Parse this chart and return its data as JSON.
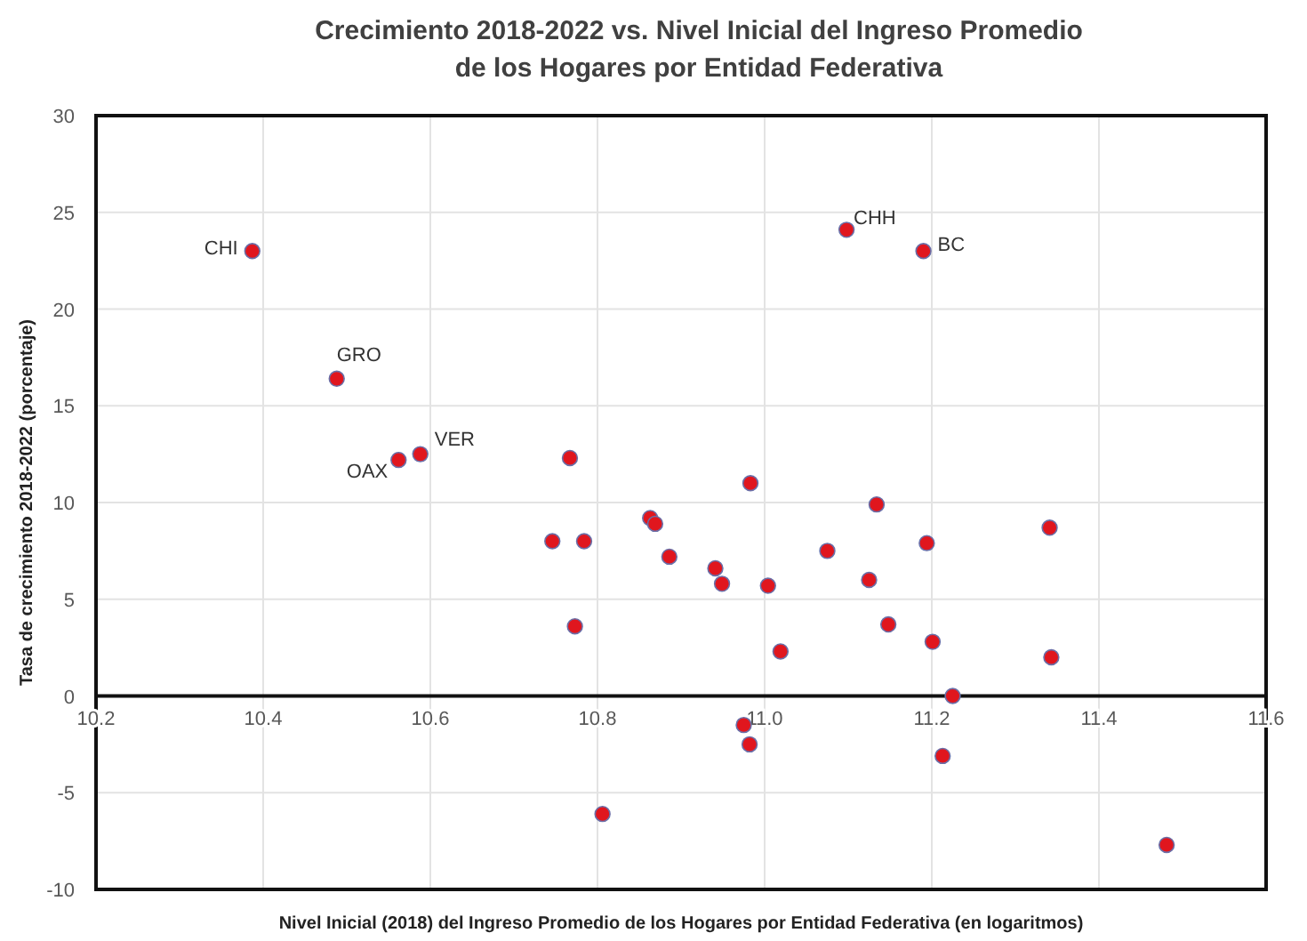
{
  "chart_data": {
    "type": "scatter",
    "title": "Crecimiento 2018-2022 vs. Nivel Inicial del Ingreso Promedio\nde los Hogares por Entidad Federativa",
    "xlabel": "Nivel Inicial (2018) del Ingreso Promedio de los Hogares por Entidad Federativa (en logaritmos)",
    "ylabel": "Tasa de crecimiento 2018-2022 (porcentaje)",
    "x": [
      10.387,
      10.488,
      10.562,
      10.588,
      11.098,
      11.19,
      10.767,
      10.746,
      10.784,
      10.773,
      10.806,
      10.863,
      10.869,
      10.886,
      10.941,
      10.949,
      10.975,
      10.982,
      10.983,
      11.004,
      11.019,
      11.075,
      11.125,
      11.134,
      11.148,
      11.194,
      11.201,
      11.213,
      11.225,
      11.341,
      11.343,
      11.481
    ],
    "series": [
      {
        "color": "#e0161e",
        "values": [
          23.0,
          16.4,
          12.2,
          12.5,
          24.1,
          23.0,
          12.3,
          8.0,
          8.0,
          3.6,
          -6.1,
          9.2,
          8.9,
          7.2,
          6.6,
          5.8,
          -1.5,
          -2.5,
          11.0,
          5.7,
          2.3,
          7.5,
          6.0,
          9.9,
          3.7,
          7.9,
          2.8,
          -3.1,
          0.0,
          8.7,
          2.0,
          -7.7
        ]
      }
    ],
    "annotations": [
      {
        "text": "CHI",
        "x": 10.387,
        "y": 23.0
      },
      {
        "text": "GRO",
        "x": 10.488,
        "y": 16.4
      },
      {
        "text": "OAX",
        "x": 10.562,
        "y": 12.2
      },
      {
        "text": "VER",
        "x": 10.588,
        "y": 12.5
      },
      {
        "text": "CHH",
        "x": 11.098,
        "y": 24.1
      },
      {
        "text": "BC",
        "x": 11.19,
        "y": 23.0
      }
    ],
    "xlim": [
      10.2,
      11.6
    ],
    "xticks": [
      {
        "value": 10.2,
        "label": "10.2"
      },
      10.4,
      10.6,
      10.8,
      {
        "value": 11.0,
        "label": "11.0"
      },
      11.2,
      11.4,
      11.6
    ],
    "ylim": [
      -10,
      30
    ],
    "yticks": [
      -10,
      -5,
      0,
      5,
      10,
      15,
      20,
      25,
      30
    ],
    "grid": true,
    "marker": "circle"
  }
}
